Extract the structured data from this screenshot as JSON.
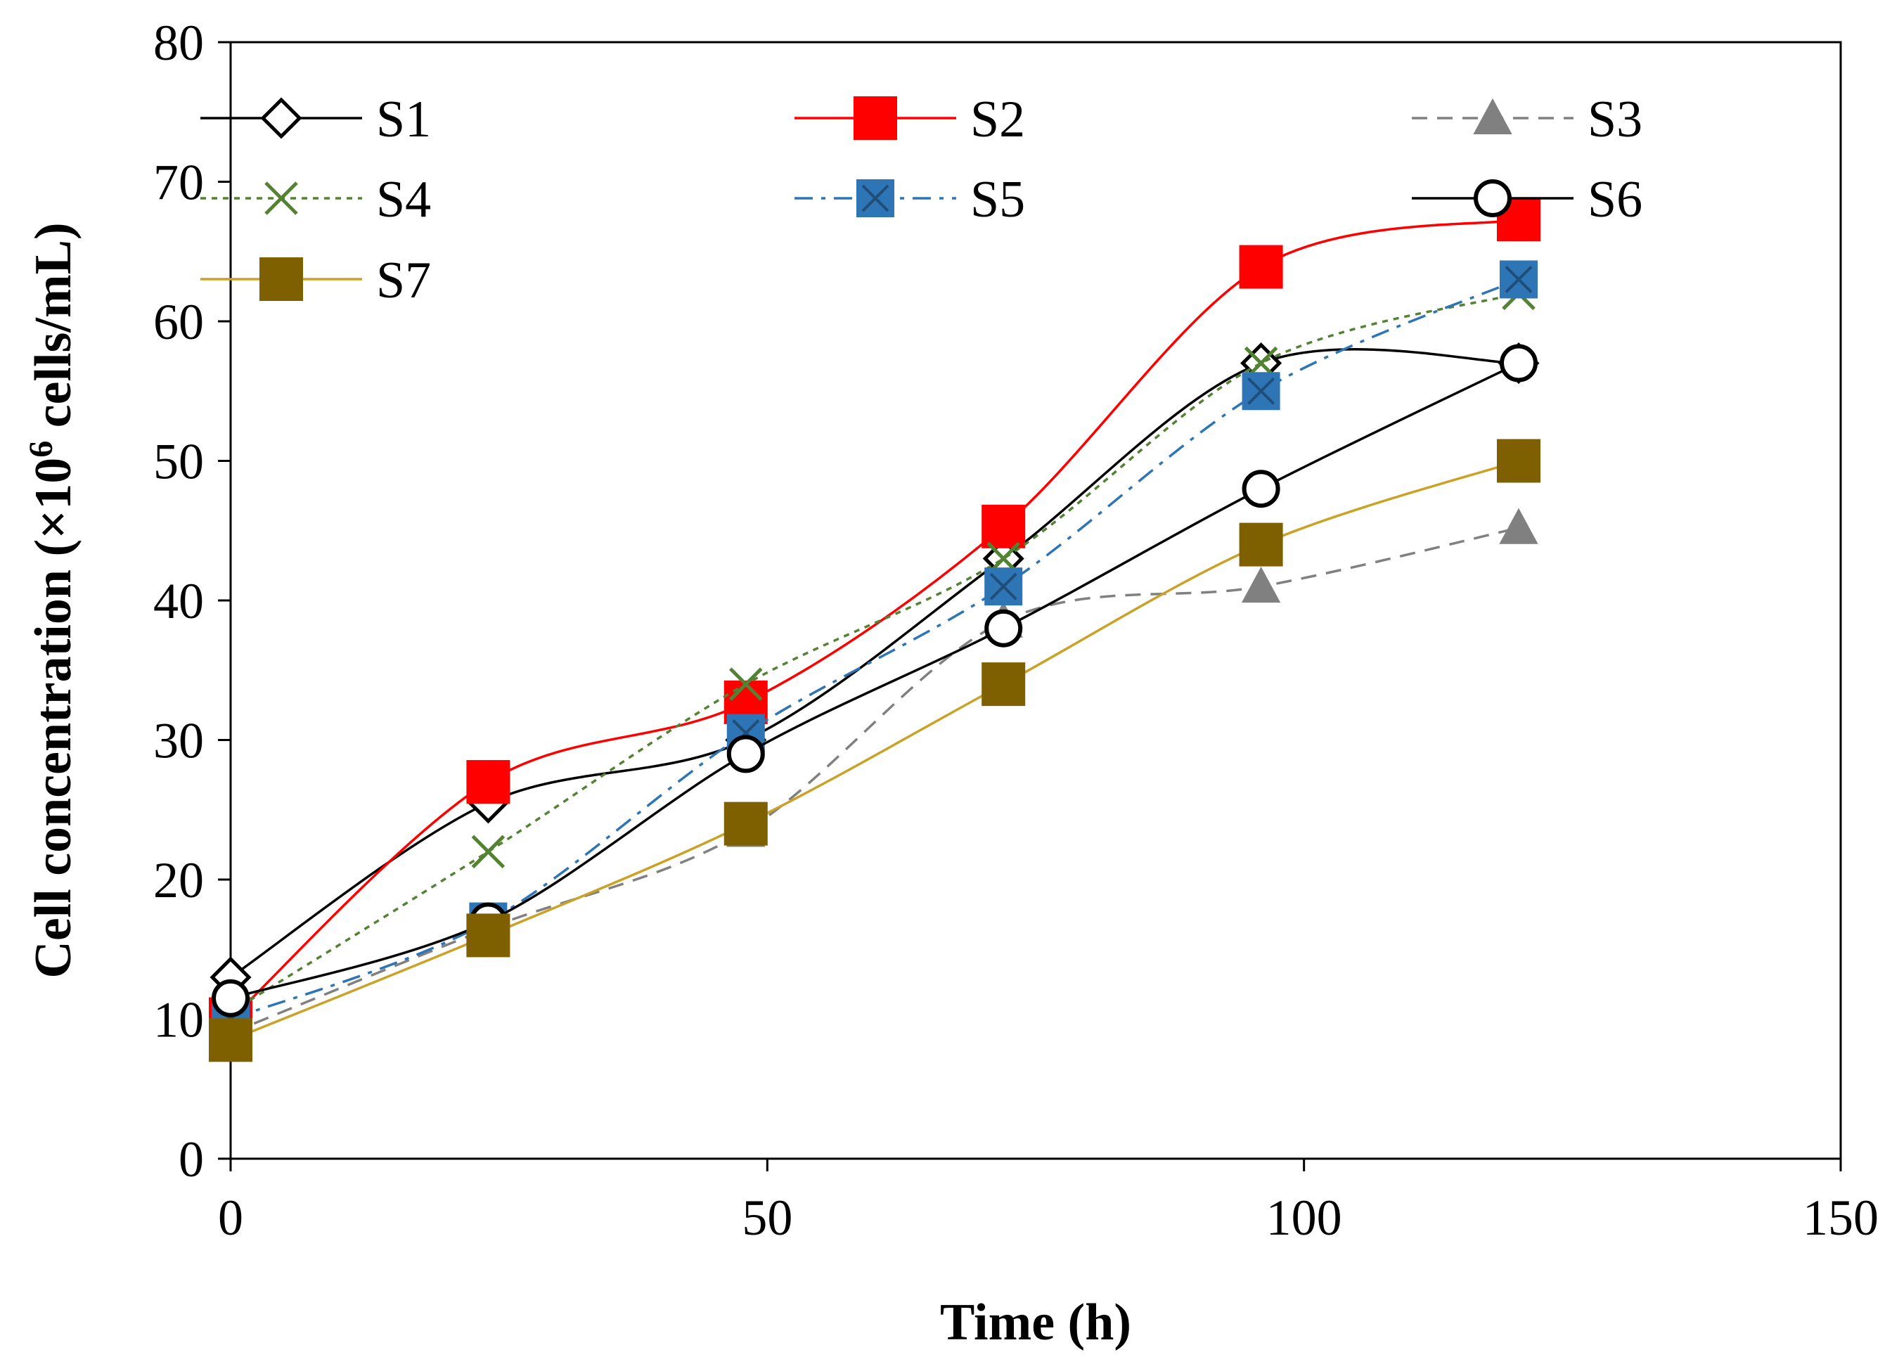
{
  "chart_data": {
    "type": "line",
    "title": "",
    "xlabel": "Time (h)",
    "ylabel_main": "Cell concentration (×10",
    "ylabel_sup": "6",
    "ylabel_tail": " cells/mL)",
    "xlim": [
      0,
      150
    ],
    "ylim": [
      0,
      80
    ],
    "xticks": [
      0,
      50,
      100,
      150
    ],
    "yticks": [
      0,
      10,
      20,
      30,
      40,
      50,
      60,
      70,
      80
    ],
    "grid": false,
    "legend_position": "top-left",
    "x": [
      0,
      24,
      48,
      72,
      96,
      120
    ],
    "series": [
      {
        "name": "S1",
        "values": [
          13,
          25.5,
          30,
          43,
          57,
          57
        ],
        "color": "#000000",
        "marker": "diamond-open",
        "dash": "solid"
      },
      {
        "name": "S2",
        "values": [
          10,
          27,
          32.7,
          45.3,
          63.9,
          67.3
        ],
        "color": "#ff0000",
        "marker": "square-filled",
        "dash": "solid"
      },
      {
        "name": "S3",
        "values": [
          9,
          16.5,
          23.5,
          38.5,
          41,
          45.2
        ],
        "color": "#808080",
        "marker": "triangle-filled",
        "dash": "dashed"
      },
      {
        "name": "S4",
        "values": [
          10.5,
          22,
          34,
          43,
          57,
          62
        ],
        "color": "#548235",
        "marker": "x",
        "dash": "dotted"
      },
      {
        "name": "S5",
        "values": [
          10,
          17,
          30.5,
          41,
          55,
          63
        ],
        "color": "#2e75b6",
        "marker": "square-x",
        "dash": "dashdot"
      },
      {
        "name": "S6",
        "values": [
          11.5,
          17,
          29,
          38,
          48,
          57
        ],
        "color": "#000000",
        "marker": "circle-open",
        "dash": "solid"
      },
      {
        "name": "S7",
        "values": [
          8.5,
          16,
          24,
          34,
          44,
          50
        ],
        "color": "#7f6000",
        "marker": "square-filled",
        "dash": "solid",
        "line_color": "#c9a227"
      }
    ]
  }
}
